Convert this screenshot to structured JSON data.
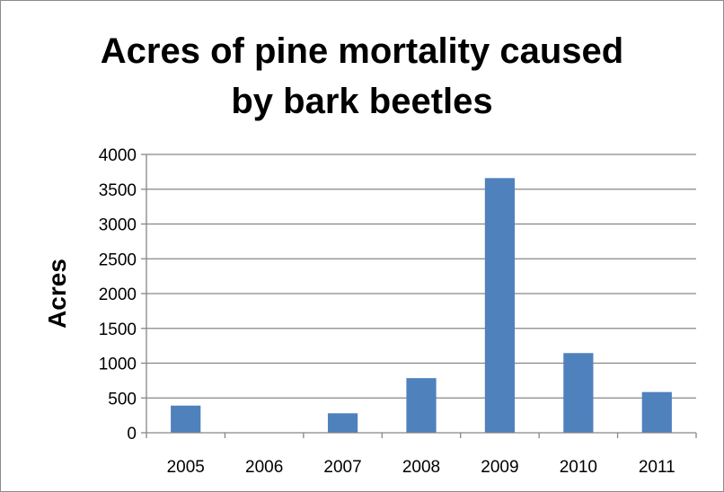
{
  "chart_data": {
    "type": "bar",
    "title_lines": [
      "Acres of pine mortality caused",
      "by bark beetles"
    ],
    "xlabel": "",
    "ylabel": "Acres",
    "categories": [
      "2005",
      "2006",
      "2007",
      "2008",
      "2009",
      "2010",
      "2011"
    ],
    "values": [
      390,
      0,
      280,
      785,
      3660,
      1145,
      585
    ],
    "ylim": [
      0,
      4000
    ],
    "yticks": [
      0,
      500,
      1000,
      1500,
      2000,
      2500,
      3000,
      3500,
      4000
    ],
    "grid": true,
    "legend": "none",
    "bar_color": "#4f81bd"
  }
}
